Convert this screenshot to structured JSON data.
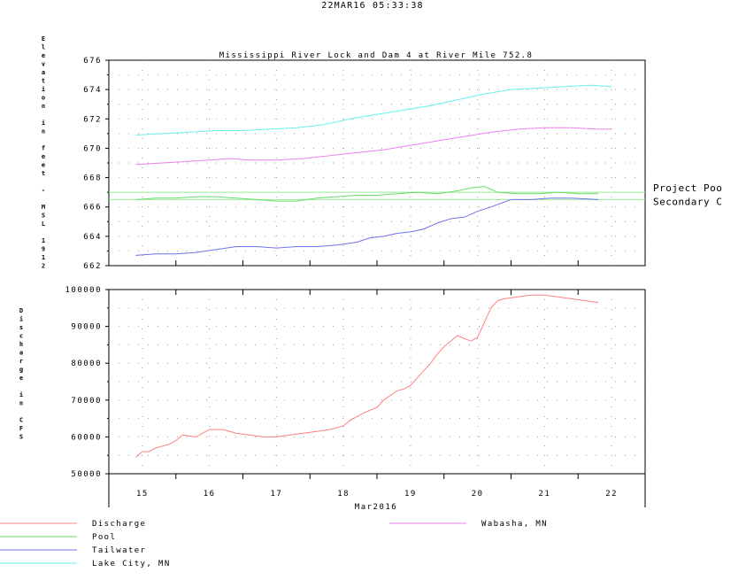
{
  "timestamp": "22MAR16  05:33:38",
  "colors": {
    "discharge": "#ff8080",
    "pool": "#66dd66",
    "tailwater": "#7070ee",
    "lake_city": "#66f0f0",
    "wabasha": "#ee80ee",
    "project_pool": "#99ee99",
    "secondary": "#99ee99",
    "grid": "#999999"
  },
  "chart_data": [
    {
      "type": "line",
      "title": "Mississippi River Lock and Dam 4 at River Mile 752.8",
      "xlabel": "",
      "ylabel": "Elevation in feet - MSL 1912",
      "ylim": [
        662,
        676
      ],
      "yticks": [
        662,
        664,
        666,
        668,
        670,
        672,
        674,
        676
      ],
      "ytick_labels": [
        "662",
        "664",
        "666",
        "668",
        "670",
        "672",
        "674",
        "676"
      ],
      "xlim": [
        14.5,
        22.5
      ],
      "grid": true,
      "reference_lines": [
        {
          "name": "Project Poo",
          "value": 667.0
        },
        {
          "name": "Secondary C",
          "value": 666.5
        }
      ],
      "series": [
        {
          "name": "Lake City, MN",
          "key": "lake_city",
          "x": [
            14.9,
            15.3,
            15.7,
            16.1,
            16.5,
            16.9,
            17.3,
            17.7,
            18.1,
            18.5,
            18.9,
            19.3,
            19.7,
            20.1,
            20.5,
            20.9,
            21.3,
            21.7,
            22.0
          ],
          "y": [
            670.9,
            671.0,
            671.1,
            671.2,
            671.2,
            671.3,
            671.4,
            671.6,
            672.0,
            672.3,
            672.6,
            672.9,
            673.3,
            673.7,
            674.0,
            674.1,
            674.2,
            674.3,
            674.2
          ]
        },
        {
          "name": "Wabasha, MN",
          "key": "wabasha",
          "x": [
            14.9,
            15.3,
            15.7,
            16.0,
            16.3,
            16.6,
            17.0,
            17.4,
            17.8,
            18.2,
            18.6,
            19.0,
            19.4,
            19.8,
            20.2,
            20.6,
            21.0,
            21.4,
            21.8,
            22.0
          ],
          "y": [
            668.9,
            669.0,
            669.1,
            669.2,
            669.3,
            669.2,
            669.2,
            669.3,
            669.5,
            669.7,
            669.9,
            670.2,
            670.5,
            670.8,
            671.1,
            671.3,
            671.4,
            671.4,
            671.3,
            671.3
          ]
        },
        {
          "name": "Pool",
          "key": "pool",
          "x": [
            14.9,
            15.2,
            15.5,
            15.8,
            16.1,
            16.4,
            16.7,
            17.0,
            17.3,
            17.6,
            17.9,
            18.2,
            18.5,
            18.8,
            19.1,
            19.4,
            19.7,
            19.9,
            20.1,
            20.3,
            20.6,
            20.9,
            21.2,
            21.5,
            21.8
          ],
          "y": [
            666.5,
            666.6,
            666.6,
            666.7,
            666.7,
            666.6,
            666.5,
            666.4,
            666.4,
            666.6,
            666.7,
            666.8,
            666.8,
            666.9,
            667.0,
            666.9,
            667.1,
            667.3,
            667.4,
            667.0,
            666.9,
            666.9,
            667.0,
            666.9,
            666.9
          ]
        },
        {
          "name": "Tailwater",
          "key": "tailwater",
          "x": [
            14.9,
            15.2,
            15.5,
            15.8,
            16.1,
            16.4,
            16.7,
            17.0,
            17.3,
            17.6,
            17.9,
            18.2,
            18.4,
            18.6,
            18.8,
            19.0,
            19.2,
            19.4,
            19.6,
            19.8,
            20.0,
            20.2,
            20.5,
            20.8,
            21.1,
            21.4,
            21.8
          ],
          "y": [
            662.7,
            662.8,
            662.8,
            662.9,
            663.1,
            663.3,
            663.3,
            663.2,
            663.3,
            663.3,
            663.4,
            663.6,
            663.9,
            664.0,
            664.2,
            664.3,
            664.5,
            664.9,
            665.2,
            665.3,
            665.7,
            666.0,
            666.5,
            666.5,
            666.6,
            666.6,
            666.5
          ]
        }
      ]
    },
    {
      "type": "line",
      "title": "",
      "xlabel": "Mar2016",
      "ylabel": "Discharge in CFS",
      "ylim": [
        50000,
        100000
      ],
      "yticks": [
        50000,
        60000,
        70000,
        80000,
        90000,
        100000
      ],
      "ytick_labels": [
        "50000",
        "60000",
        "70000",
        "80000",
        "90000",
        "100000"
      ],
      "xlim": [
        14.5,
        22.5
      ],
      "xticks": [
        15,
        16,
        17,
        18,
        19,
        20,
        21,
        22
      ],
      "xtick_labels": [
        "15",
        "16",
        "17",
        "18",
        "19",
        "20",
        "21",
        "22"
      ],
      "grid": true,
      "series": [
        {
          "name": "Discharge",
          "key": "discharge",
          "x": [
            14.9,
            15.0,
            15.1,
            15.2,
            15.3,
            15.4,
            15.5,
            15.6,
            15.8,
            15.9,
            16.0,
            16.2,
            16.4,
            16.6,
            16.8,
            17.0,
            17.2,
            17.4,
            17.6,
            17.8,
            18.0,
            18.1,
            18.3,
            18.5,
            18.6,
            18.8,
            18.9,
            19.0,
            19.1,
            19.3,
            19.4,
            19.5,
            19.6,
            19.7,
            19.9,
            20.0,
            20.1,
            20.2,
            20.3,
            20.4,
            20.6,
            20.8,
            21.0,
            21.2,
            21.4,
            21.6,
            21.8
          ],
          "y": [
            54500,
            56000,
            56000,
            57000,
            57500,
            58000,
            59000,
            60500,
            60000,
            61000,
            62000,
            62000,
            61000,
            60500,
            60000,
            60000,
            60500,
            61000,
            61500,
            62000,
            63000,
            64500,
            66500,
            68000,
            70000,
            72500,
            73000,
            74000,
            76000,
            80000,
            82500,
            84500,
            86000,
            87500,
            86000,
            87000,
            91000,
            95000,
            97000,
            97500,
            98000,
            98500,
            98500,
            98000,
            97500,
            97000,
            96500
          ]
        }
      ]
    }
  ],
  "legend": [
    {
      "label": "Discharge",
      "key": "discharge"
    },
    {
      "label": "Pool",
      "key": "pool"
    },
    {
      "label": "Tailwater",
      "key": "tailwater"
    },
    {
      "label": "Lake City, MN",
      "key": "lake_city"
    },
    {
      "label": "Wabasha, MN",
      "key": "wabasha"
    }
  ]
}
